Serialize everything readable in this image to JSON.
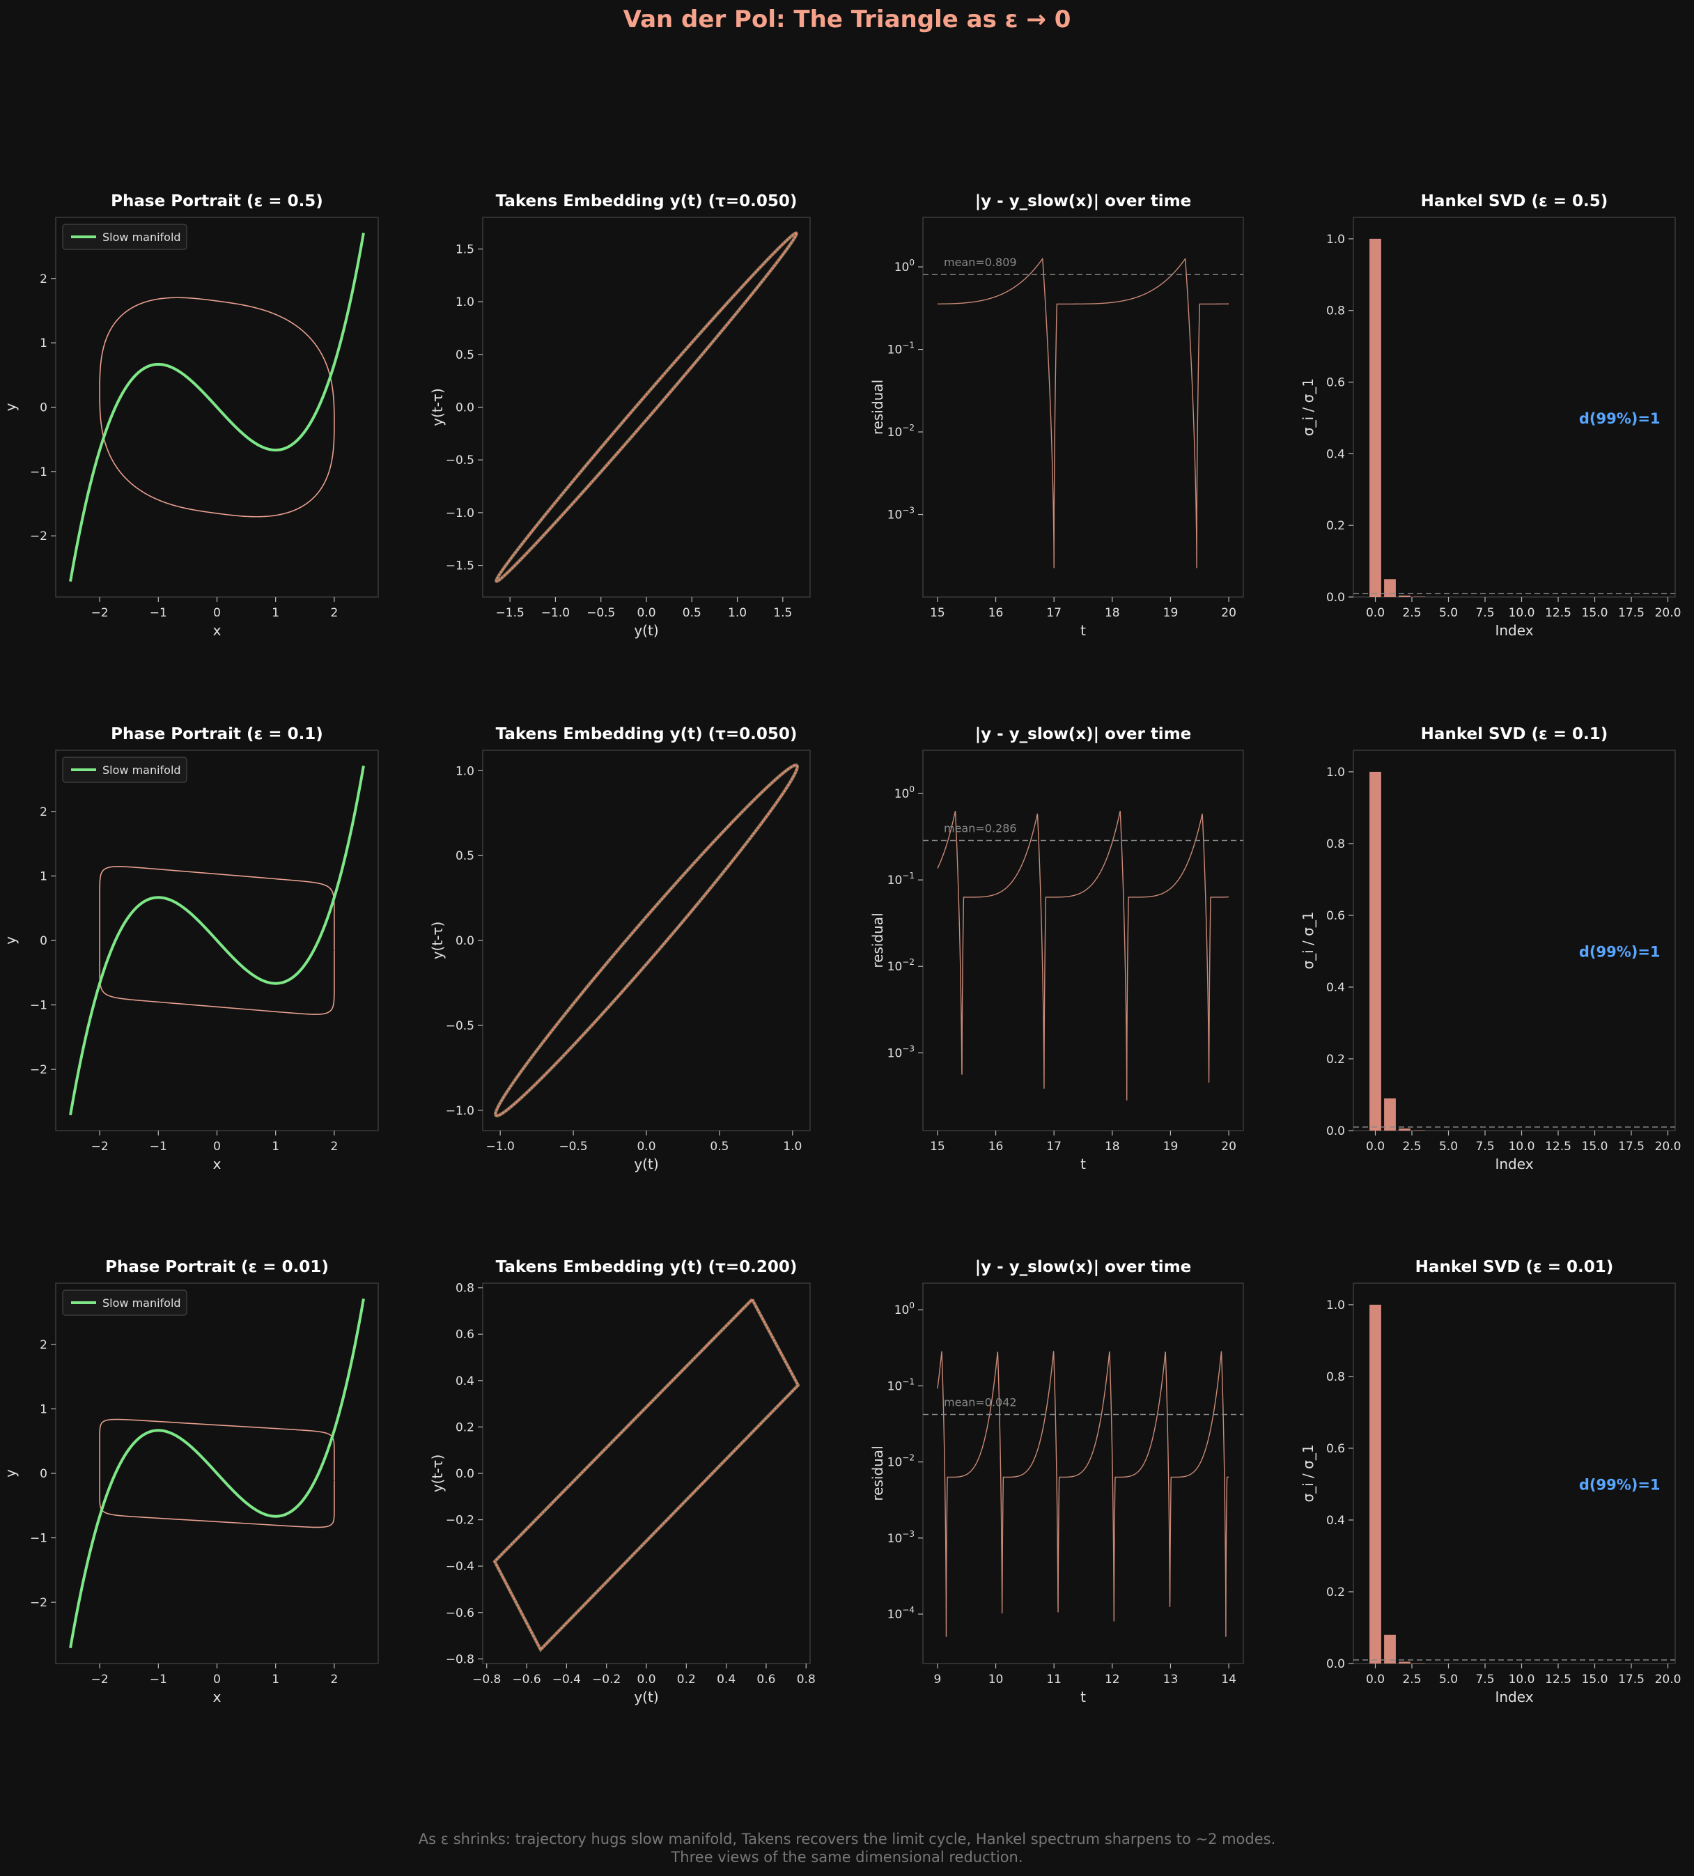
{
  "title": "Van der Pol: The Triangle as ε → 0",
  "footer": {
    "line1": "As ε shrinks: trajectory hugs slow manifold, Takens recovers the limit cycle, Hankel spectrum sharpens to ~2 modes.",
    "line2": "Three views of the same dimensional reduction."
  },
  "colors": {
    "background": "#111111",
    "trajectory": "#e8a090",
    "slow_manifold": "#7ee787",
    "bars": "#d4897a",
    "annotation": "#58a6ff",
    "spine": "#3a3a3a",
    "text": "#e0e0e0"
  },
  "chart_data": [
    {
      "row": 0,
      "panel": "phase",
      "type": "line",
      "title": "Phase Portrait (ε = 0.5)",
      "xlabel": "x",
      "ylabel": "y",
      "xlim": [
        -2.75,
        2.75
      ],
      "ylim": [
        -2.95,
        2.95
      ],
      "xticks": [
        -2,
        -1,
        0,
        1,
        2
      ],
      "yticks": [
        -2,
        -1,
        0,
        1,
        2
      ],
      "legend": "Slow manifold",
      "slow_manifold": "y = x^3/3 - x",
      "limit_cycle": {
        "amplitude_x": 2.0,
        "y_max": 1.65
      }
    },
    {
      "row": 0,
      "panel": "takens",
      "type": "line",
      "title": "Takens Embedding y(t) (τ=0.050)",
      "xlabel": "y(t)",
      "ylabel": "y(t-τ)",
      "xlim": [
        -1.8,
        1.8
      ],
      "ylim": [
        -1.8,
        1.8
      ],
      "xticks": [
        -1.5,
        -1.0,
        -0.5,
        0.0,
        0.5,
        1.0,
        1.5
      ],
      "yticks": [
        -1.5,
        -1.0,
        -0.5,
        0.0,
        0.5,
        1.0,
        1.5
      ],
      "range": [
        -1.65,
        1.65
      ],
      "width": 0.06
    },
    {
      "row": 0,
      "panel": "residual",
      "type": "line",
      "title": "|y - y_slow(x)| over time",
      "xlabel": "t",
      "ylabel": "residual",
      "xlim": [
        14.75,
        20.25
      ],
      "logmin": -4.0,
      "logmax": 0.6,
      "xticks": [
        15,
        16,
        17,
        18,
        19,
        20
      ],
      "yticks": [
        0,
        -1,
        -2,
        -3
      ],
      "mean": 0.809,
      "mean_label": "mean=0.809",
      "t0": 15,
      "t1": 20,
      "period": 2.45,
      "dip_times": [
        17.0,
        19.45
      ],
      "peak": 2.1
    },
    {
      "row": 0,
      "panel": "svd",
      "type": "bar",
      "title": "Hankel SVD (ε = 0.5)",
      "xlabel": "Index",
      "ylabel": "σ_i / σ_1",
      "xlim": [
        -1.5,
        20.5
      ],
      "ylim": [
        0,
        1.06
      ],
      "xticks": [
        0.0,
        2.5,
        5.0,
        7.5,
        10.0,
        12.5,
        15.0,
        17.5,
        20.0
      ],
      "yticks": [
        0.0,
        0.2,
        0.4,
        0.6,
        0.8,
        1.0
      ],
      "values": [
        1.0,
        0.05,
        0.004,
        0.001
      ],
      "threshold": 0.01,
      "annotation": "d(99%)=1"
    },
    {
      "row": 1,
      "panel": "phase",
      "type": "line",
      "title": "Phase Portrait (ε = 0.1)",
      "xlabel": "x",
      "ylabel": "y",
      "xlim": [
        -2.75,
        2.75
      ],
      "ylim": [
        -2.95,
        2.95
      ],
      "xticks": [
        -2,
        -1,
        0,
        1,
        2
      ],
      "yticks": [
        -2,
        -1,
        0,
        1,
        2
      ],
      "legend": "Slow manifold",
      "slow_manifold": "y = x^3/3 - x",
      "limit_cycle": {
        "amplitude_x": 2.0,
        "y_max": 1.03
      }
    },
    {
      "row": 1,
      "panel": "takens",
      "type": "line",
      "title": "Takens Embedding y(t) (τ=0.050)",
      "xlabel": "y(t)",
      "ylabel": "y(t-τ)",
      "xlim": [
        -1.12,
        1.12
      ],
      "ylim": [
        -1.12,
        1.12
      ],
      "xticks": [
        -1.0,
        -0.5,
        0.0,
        0.5,
        1.0
      ],
      "yticks": [
        -1.0,
        -0.5,
        0.0,
        0.5,
        1.0
      ],
      "range": [
        -1.03,
        1.03
      ],
      "width": 0.07
    },
    {
      "row": 1,
      "panel": "residual",
      "type": "line",
      "title": "|y - y_slow(x)| over time",
      "xlabel": "t",
      "ylabel": "residual",
      "xlim": [
        14.75,
        20.25
      ],
      "logmin": -3.9,
      "logmax": 0.5,
      "xticks": [
        15,
        16,
        17,
        18,
        19,
        20
      ],
      "yticks": [
        0,
        -1,
        -2,
        -3
      ],
      "mean": 0.286,
      "mean_label": "mean=0.286",
      "t0": 15,
      "t1": 20,
      "period": 1.42,
      "dip_times": [
        15.42,
        16.83,
        18.25,
        19.66
      ],
      "peak": 1.6
    },
    {
      "row": 1,
      "panel": "svd",
      "type": "bar",
      "title": "Hankel SVD (ε = 0.1)",
      "xlabel": "Index",
      "ylabel": "σ_i / σ_1",
      "xlim": [
        -1.5,
        20.5
      ],
      "ylim": [
        0,
        1.06
      ],
      "xticks": [
        0.0,
        2.5,
        5.0,
        7.5,
        10.0,
        12.5,
        15.0,
        17.5,
        20.0
      ],
      "yticks": [
        0.0,
        0.2,
        0.4,
        0.6,
        0.8,
        1.0
      ],
      "values": [
        1.0,
        0.09,
        0.006,
        0.001
      ],
      "threshold": 0.01,
      "annotation": "d(99%)=1"
    },
    {
      "row": 2,
      "panel": "phase",
      "type": "line",
      "title": "Phase Portrait (ε = 0.01)",
      "xlabel": "x",
      "ylabel": "y",
      "xlim": [
        -2.75,
        2.75
      ],
      "ylim": [
        -2.95,
        2.95
      ],
      "xticks": [
        -2,
        -1,
        0,
        1,
        2
      ],
      "yticks": [
        -2,
        -1,
        0,
        1,
        2
      ],
      "legend": "Slow manifold",
      "slow_manifold": "y = x^3/3 - x",
      "limit_cycle": {
        "amplitude_x": 2.0,
        "y_max": 0.75
      }
    },
    {
      "row": 2,
      "panel": "takens",
      "type": "line",
      "title": "Takens Embedding y(t) (τ=0.200)",
      "xlabel": "y(t)",
      "ylabel": "y(t-τ)",
      "xlim": [
        -0.82,
        0.82
      ],
      "ylim": [
        -0.82,
        0.82
      ],
      "xticks": [
        -0.8,
        -0.6,
        -0.4,
        -0.2,
        0.0,
        0.2,
        0.4,
        0.6,
        0.8
      ],
      "yticks": [
        -0.8,
        -0.6,
        -0.4,
        -0.2,
        0.0,
        0.2,
        0.4,
        0.6,
        0.8
      ],
      "polygon": [
        [
          0.53,
          0.75
        ],
        [
          0.76,
          0.38
        ],
        [
          -0.53,
          -0.76
        ],
        [
          -0.76,
          -0.38
        ]
      ]
    },
    {
      "row": 2,
      "panel": "residual",
      "type": "line",
      "title": "|y - y_slow(x)| over time",
      "xlabel": "t",
      "ylabel": "residual",
      "xlim": [
        8.75,
        14.25
      ],
      "logmin": -4.65,
      "logmax": 0.35,
      "xticks": [
        9,
        10,
        11,
        12,
        13,
        14
      ],
      "yticks": [
        0,
        -1,
        -2,
        -3,
        -4
      ],
      "mean": 0.042,
      "mean_label": "mean=0.042",
      "t0": 9,
      "t1": 14,
      "period": 0.96,
      "dip_times": [
        9.15,
        10.11,
        11.07,
        12.03,
        12.99,
        13.95
      ],
      "peak": 1.35
    },
    {
      "row": 2,
      "panel": "svd",
      "type": "bar",
      "title": "Hankel SVD (ε = 0.01)",
      "xlabel": "Index",
      "ylabel": "σ_i / σ_1",
      "xlim": [
        -1.5,
        20.5
      ],
      "ylim": [
        0,
        1.06
      ],
      "xticks": [
        0.0,
        2.5,
        5.0,
        7.5,
        10.0,
        12.5,
        15.0,
        17.5,
        20.0
      ],
      "yticks": [
        0.0,
        0.2,
        0.4,
        0.6,
        0.8,
        1.0
      ],
      "values": [
        1.0,
        0.08,
        0.005,
        0.001
      ],
      "threshold": 0.01,
      "annotation": "d(99%)=1"
    }
  ]
}
